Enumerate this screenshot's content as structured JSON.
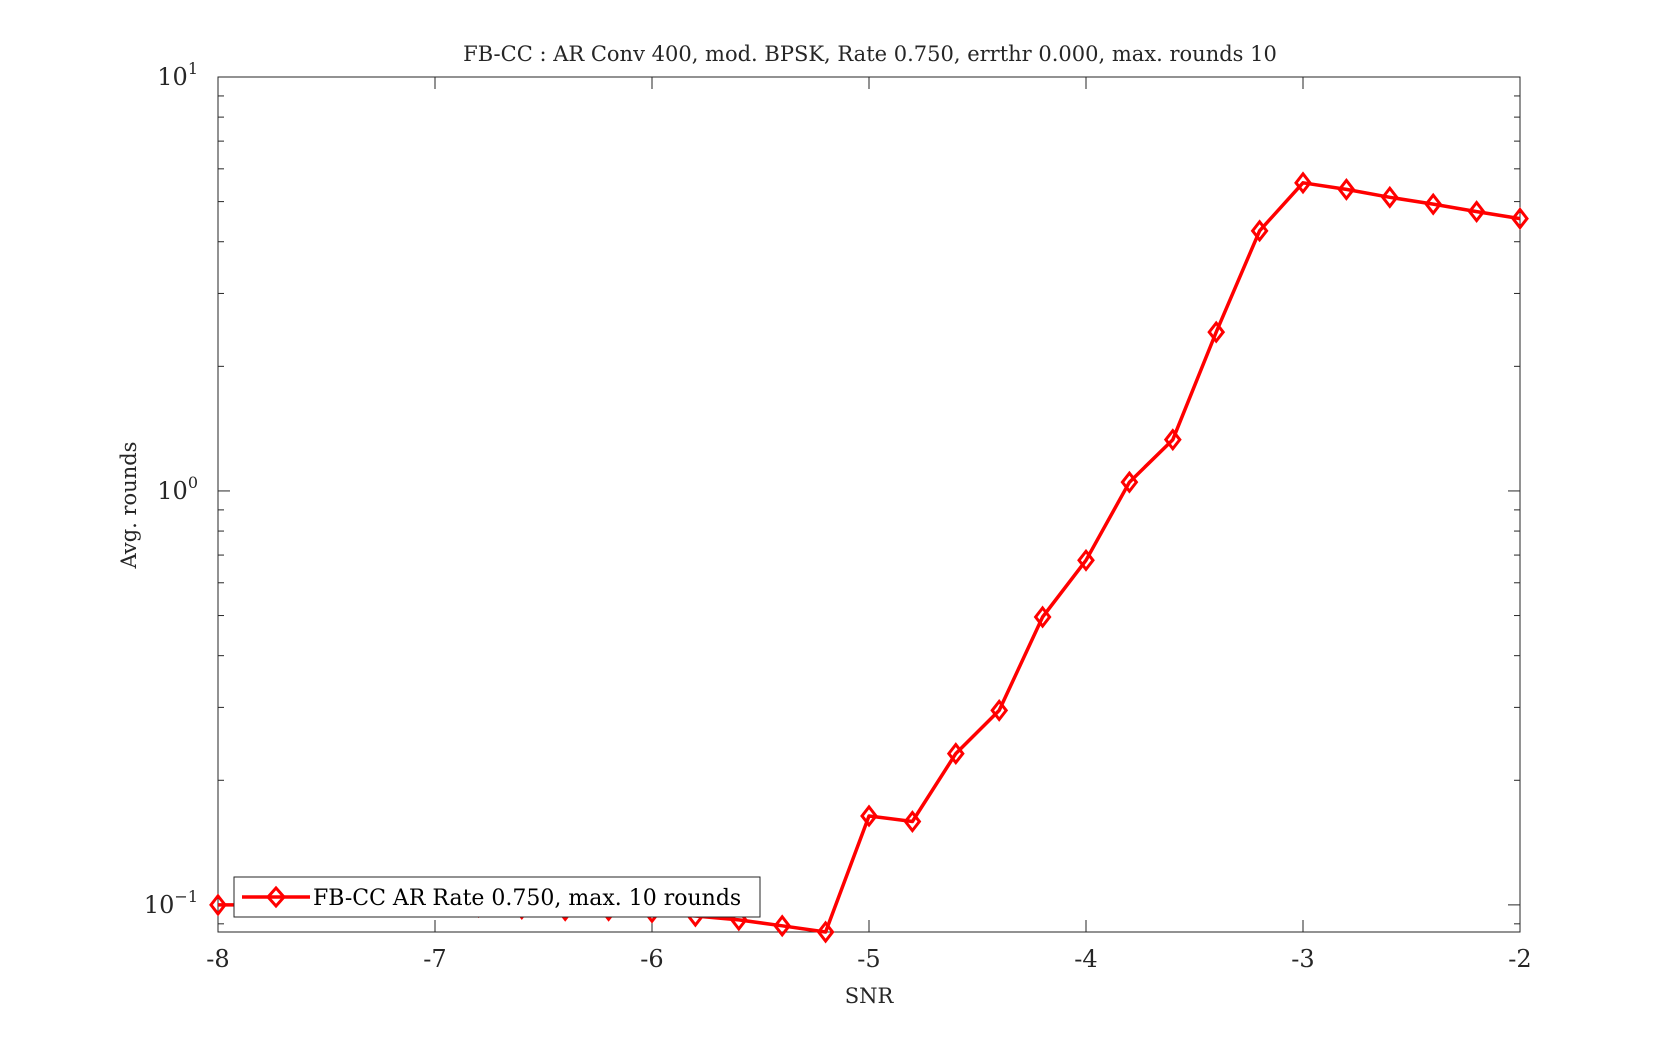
{
  "chart_data": {
    "type": "line",
    "title": "FB-CC : AR Conv 400, mod. BPSK, Rate 0.750, errthr 0.000, max. rounds 10",
    "xlabel": "SNR",
    "ylabel": "Avg. rounds",
    "xlim": [
      -8,
      -2
    ],
    "ylim": [
      0.086,
      10
    ],
    "y_scale": "log",
    "x_ticks": [
      {
        "value": -8,
        "label": "-8"
      },
      {
        "value": -7,
        "label": "-7"
      },
      {
        "value": -6,
        "label": "-6"
      },
      {
        "value": -5,
        "label": "-5"
      },
      {
        "value": -4,
        "label": "-4"
      },
      {
        "value": -3,
        "label": "-3"
      },
      {
        "value": -2,
        "label": "-2"
      }
    ],
    "y_ticks": [
      {
        "value": 0.1,
        "base": "10",
        "exp": "−1"
      },
      {
        "value": 1,
        "base": "10",
        "exp": "0"
      },
      {
        "value": 10,
        "base": "10",
        "exp": "1"
      }
    ],
    "grid": false,
    "legend_position": "bottom-left",
    "series": [
      {
        "name": "FB-CC AR Rate 0.750, max. 10 rounds",
        "color": "#ff0000",
        "marker": "diamond",
        "x": [
          -8,
          -7.8,
          -7.6,
          -7.4,
          -7.2,
          -7,
          -6.8,
          -6.6,
          -6.4,
          -6.2,
          -6,
          -5.8,
          -5.6,
          -5.4,
          -5.2,
          -5,
          -4.8,
          -4.6,
          -4.4,
          -4.2,
          -4,
          -3.8,
          -3.6,
          -3.4,
          -3.2,
          -3,
          -2.8,
          -2.6,
          -2.4,
          -2.2,
          -2
        ],
        "y": [
          0.1,
          0.1,
          0.1,
          0.1,
          0.1,
          0.1,
          0.099,
          0.098,
          0.097,
          0.097,
          0.096,
          0.094,
          0.092,
          0.089,
          0.086,
          0.164,
          0.159,
          0.232,
          0.295,
          0.496,
          0.68,
          1.05,
          1.33,
          2.42,
          4.25,
          5.55,
          5.35,
          5.12,
          4.93,
          4.73,
          4.55
        ]
      }
    ]
  }
}
